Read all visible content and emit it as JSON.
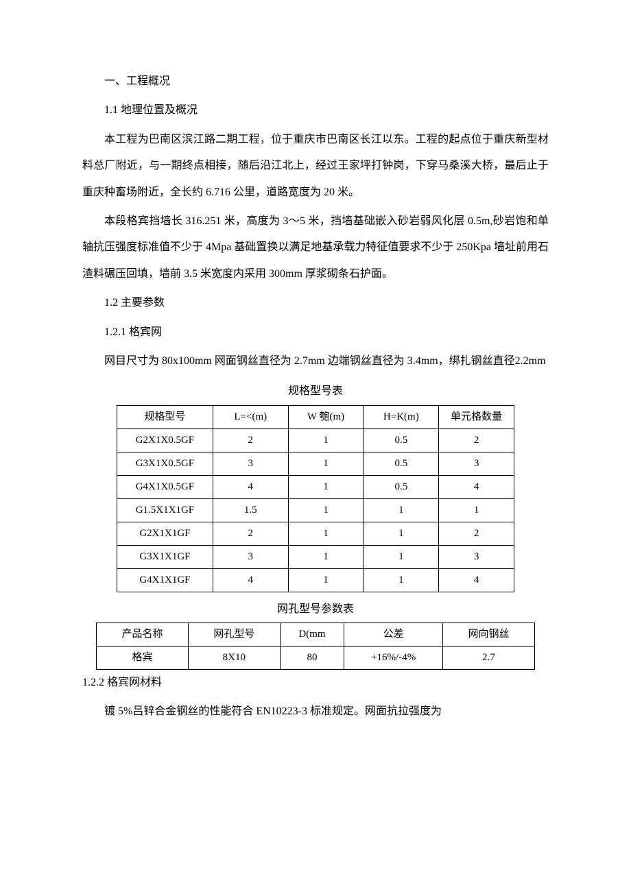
{
  "section1": {
    "title": "一、工程概况",
    "sub1_1": {
      "title": "1.1 地理位置及概况",
      "para1": "本工程为巴南区滨江路二期工程，位于重庆市巴南区长江以东。工程的起点位于重庆新型材料总厂附近，与一期终点相接，随后沿江北上，经过王家坪打钟岗，下穿马桑溪大桥，最后止于重庆种畜场附近，全长约 6.716 公里，道路宽度为 20 米。",
      "para2": "本段格宾挡墙长 316.251 米，高度为 3～5 米，挡墙基础嵌入砂岩弱风化层 0.5m,砂岩饱和单轴抗压强度标准值不少于 4Mpa 基础置换以满足地基承载力特征值要求不少于 250Kpa 墙址前用石渣料碾压回填，墙前 3.5 米宽度内采用 300mm 厚浆砌条石护面。"
    },
    "sub1_2": {
      "title": "1.2 主要参数",
      "sub1_2_1": {
        "title": "1.2.1  格宾网",
        "para1": "网目尺寸为 80x100mm 网面钢丝直径为 2.7mm 边端钢丝直径为 3.4mm，绑扎钢丝直径2.2mm"
      },
      "sub1_2_2": {
        "title": "1.2.2  格宾网材料",
        "para1": "镀 5%吕锌合金钢丝的性能符合 EN10223-3 标准规定。网面抗拉强度为"
      }
    }
  },
  "table1": {
    "title": "规格型号表",
    "headers": [
      "规格型号",
      "L=<(m)",
      "W 匏(m)",
      "H=K(m)",
      "单元格数量"
    ],
    "rows": [
      [
        "G2X1X0.5GF",
        "2",
        "1",
        "0.5",
        "2"
      ],
      [
        "G3X1X0.5GF",
        "3",
        "1",
        "0.5",
        "3"
      ],
      [
        "G4X1X0.5GF",
        "4",
        "1",
        "0.5",
        "4"
      ],
      [
        "G1.5X1X1GF",
        "1.5",
        "1",
        "1",
        "1"
      ],
      [
        "G2X1X1GF",
        "2",
        "1",
        "1",
        "2"
      ],
      [
        "G3X1X1GF",
        "3",
        "1",
        "1",
        "3"
      ],
      [
        "G4X1X1GF",
        "4",
        "1",
        "1",
        "4"
      ]
    ]
  },
  "table2": {
    "title": "网孔型号参数表",
    "headers": [
      "产品名称",
      "网孔型号",
      "D(mm",
      "公差",
      "网向钢丝"
    ],
    "rows": [
      [
        "格宾",
        "8X10",
        "80",
        "+16%/-4%",
        "2.7"
      ]
    ]
  },
  "colors": {
    "text": "#000000",
    "background": "#ffffff",
    "border": "#000000"
  }
}
